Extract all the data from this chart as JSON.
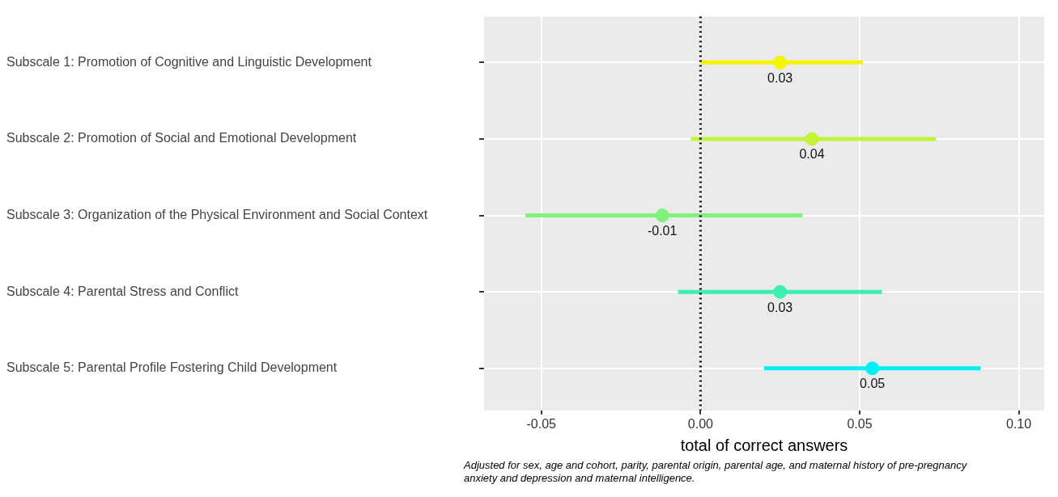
{
  "chart_data": {
    "type": "scatter",
    "orientation": "horizontal",
    "categories": [
      "Subscale 1: Promotion of Cognitive and Linguistic Development",
      "Subscale 2: Promotion of Social and Emotional Development",
      "Subscale 3: Organization of the Physical Environment and Social Context",
      "Subscale 4: Parental Stress and Conflict",
      "Subscale 5: Parental Profile Fostering Child Development"
    ],
    "values": [
      0.025,
      0.035,
      -0.012,
      0.025,
      0.054
    ],
    "errors": [
      [
        0.0,
        0.051
      ],
      [
        -0.003,
        0.074
      ],
      [
        -0.055,
        0.032
      ],
      [
        -0.007,
        0.057
      ],
      [
        0.02,
        0.088
      ]
    ],
    "colors": [
      "#f5f500",
      "#c2f53a",
      "#7ef27a",
      "#3ef0b0",
      "#00f0f5"
    ],
    "value_labels": [
      "0.03",
      "0.04",
      "-0.01",
      "0.03",
      "0.05"
    ],
    "xlim": [
      -0.068,
      0.108
    ],
    "xticks": [
      {
        "value": -0.05,
        "label": "-0.05"
      },
      {
        "value": 0,
        "label": "0.00"
      },
      {
        "value": 0.05,
        "label": "0.05"
      },
      {
        "value": 0.1,
        "label": "0.10"
      }
    ],
    "xlabel": "total of correct answers",
    "ref_lines": [
      {
        "axis": "x",
        "value": 0,
        "line_style": "dotted",
        "color": "#000000"
      }
    ],
    "annotations": [
      "Adjusted for sex, age and cohort, parity, parental origin, parental age, and maternal history of pre-pregnancy anxiety and depression and maternal intelligence."
    ],
    "grid": true,
    "marker": "circle",
    "legend": false
  }
}
